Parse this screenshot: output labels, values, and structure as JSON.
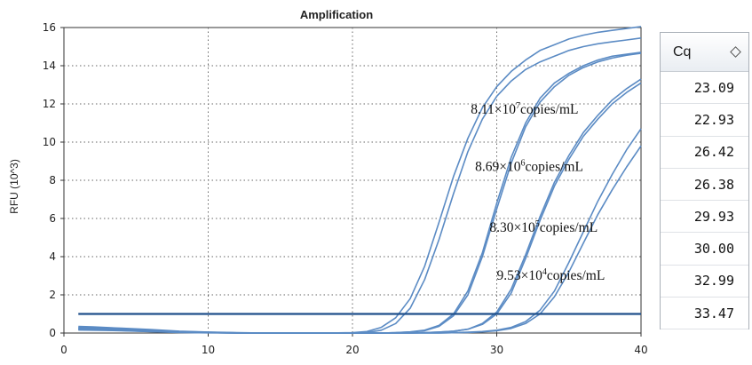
{
  "chart_data": {
    "type": "line",
    "title": "Amplification",
    "xlabel": "",
    "ylabel": "RFU (10^3)",
    "xlim": [
      0,
      40
    ],
    "ylim": [
      0,
      16
    ],
    "x_ticks": [
      0,
      10,
      20,
      30,
      40
    ],
    "y_ticks": [
      0,
      2,
      4,
      6,
      8,
      10,
      12,
      14,
      16
    ],
    "grid": true,
    "threshold": {
      "y": 1.0,
      "color": "#1f4f8a"
    },
    "series_color": "#5b8bc4",
    "x": [
      1,
      2,
      4,
      6,
      8,
      10,
      12,
      14,
      16,
      18,
      20,
      21,
      22,
      23,
      24,
      25,
      26,
      27,
      28,
      29,
      30,
      31,
      32,
      33,
      34,
      35,
      36,
      37,
      38,
      39,
      40
    ],
    "series": [
      {
        "values": [
          0.35,
          0.32,
          0.25,
          0.18,
          0.1,
          0.05,
          0.02,
          0.0,
          0.0,
          0.0,
          0.02,
          0.08,
          0.3,
          0.8,
          1.8,
          3.5,
          5.8,
          8.2,
          10.2,
          11.8,
          12.9,
          13.7,
          14.3,
          14.8,
          15.1,
          15.4,
          15.6,
          15.75,
          15.85,
          15.95,
          16.05
        ]
      },
      {
        "values": [
          0.3,
          0.28,
          0.22,
          0.15,
          0.08,
          0.04,
          0.01,
          0.0,
          0.0,
          0.0,
          0.0,
          0.03,
          0.15,
          0.5,
          1.3,
          2.8,
          4.9,
          7.3,
          9.5,
          11.2,
          12.4,
          13.2,
          13.8,
          14.2,
          14.5,
          14.8,
          15.0,
          15.15,
          15.25,
          15.35,
          15.45
        ]
      },
      {
        "values": [
          0.28,
          0.26,
          0.2,
          0.13,
          0.07,
          0.03,
          0.01,
          0.0,
          0.0,
          0.0,
          0.0,
          0.0,
          0.0,
          0.02,
          0.06,
          0.15,
          0.4,
          1.0,
          2.2,
          4.2,
          6.8,
          9.2,
          11.0,
          12.3,
          13.1,
          13.6,
          14.0,
          14.3,
          14.5,
          14.6,
          14.7
        ]
      },
      {
        "values": [
          0.25,
          0.24,
          0.19,
          0.12,
          0.06,
          0.03,
          0.01,
          0.0,
          0.0,
          0.0,
          0.0,
          0.0,
          0.0,
          0.02,
          0.05,
          0.12,
          0.35,
          0.9,
          2.0,
          4.0,
          6.5,
          8.9,
          10.8,
          12.1,
          12.9,
          13.5,
          13.9,
          14.2,
          14.4,
          14.55,
          14.65
        ]
      },
      {
        "values": [
          0.22,
          0.2,
          0.16,
          0.1,
          0.05,
          0.02,
          0.0,
          0.0,
          0.0,
          0.0,
          0.0,
          0.0,
          0.0,
          0.0,
          0.0,
          0.02,
          0.05,
          0.1,
          0.2,
          0.5,
          1.1,
          2.3,
          4.1,
          6.1,
          7.9,
          9.3,
          10.5,
          11.4,
          12.2,
          12.8,
          13.3
        ]
      },
      {
        "values": [
          0.2,
          0.19,
          0.15,
          0.09,
          0.05,
          0.02,
          0.0,
          0.0,
          0.0,
          0.0,
          0.0,
          0.0,
          0.0,
          0.0,
          0.0,
          0.02,
          0.05,
          0.1,
          0.2,
          0.45,
          1.0,
          2.1,
          3.9,
          5.9,
          7.7,
          9.1,
          10.3,
          11.2,
          12.0,
          12.6,
          13.1
        ]
      },
      {
        "values": [
          0.18,
          0.17,
          0.13,
          0.08,
          0.04,
          0.02,
          0.0,
          0.0,
          0.0,
          0.0,
          0.0,
          0.0,
          0.0,
          0.0,
          0.0,
          0.0,
          0.0,
          0.02,
          0.04,
          0.08,
          0.15,
          0.3,
          0.6,
          1.2,
          2.2,
          3.7,
          5.3,
          6.9,
          8.3,
          9.6,
          10.7
        ]
      },
      {
        "values": [
          0.16,
          0.15,
          0.12,
          0.07,
          0.03,
          0.01,
          0.0,
          0.0,
          0.0,
          0.0,
          0.0,
          0.0,
          0.0,
          0.0,
          0.0,
          0.0,
          0.0,
          0.02,
          0.03,
          0.06,
          0.12,
          0.24,
          0.5,
          1.0,
          1.9,
          3.2,
          4.7,
          6.2,
          7.5,
          8.7,
          9.8
        ]
      }
    ],
    "annotations": [
      {
        "base": "8.11×10",
        "exp": "7",
        "unit": "copies/mL",
        "x": 28.2,
        "y": 11.5
      },
      {
        "base": "8.69×10",
        "exp": "6",
        "unit": "copies/mL",
        "x": 28.5,
        "y": 8.5
      },
      {
        "base": "8.30×10",
        "exp": "5",
        "unit": "copies/mL",
        "x": 29.5,
        "y": 5.3
      },
      {
        "base": "9.53×10",
        "exp": "4",
        "unit": "copies/mL",
        "x": 30.0,
        "y": 2.8
      }
    ]
  },
  "cq_table": {
    "header": "Cq",
    "sort_icon": "sort-diamond-icon",
    "values": [
      "23.09",
      "22.93",
      "26.42",
      "26.38",
      "29.93",
      "30.00",
      "32.99",
      "33.47"
    ]
  }
}
